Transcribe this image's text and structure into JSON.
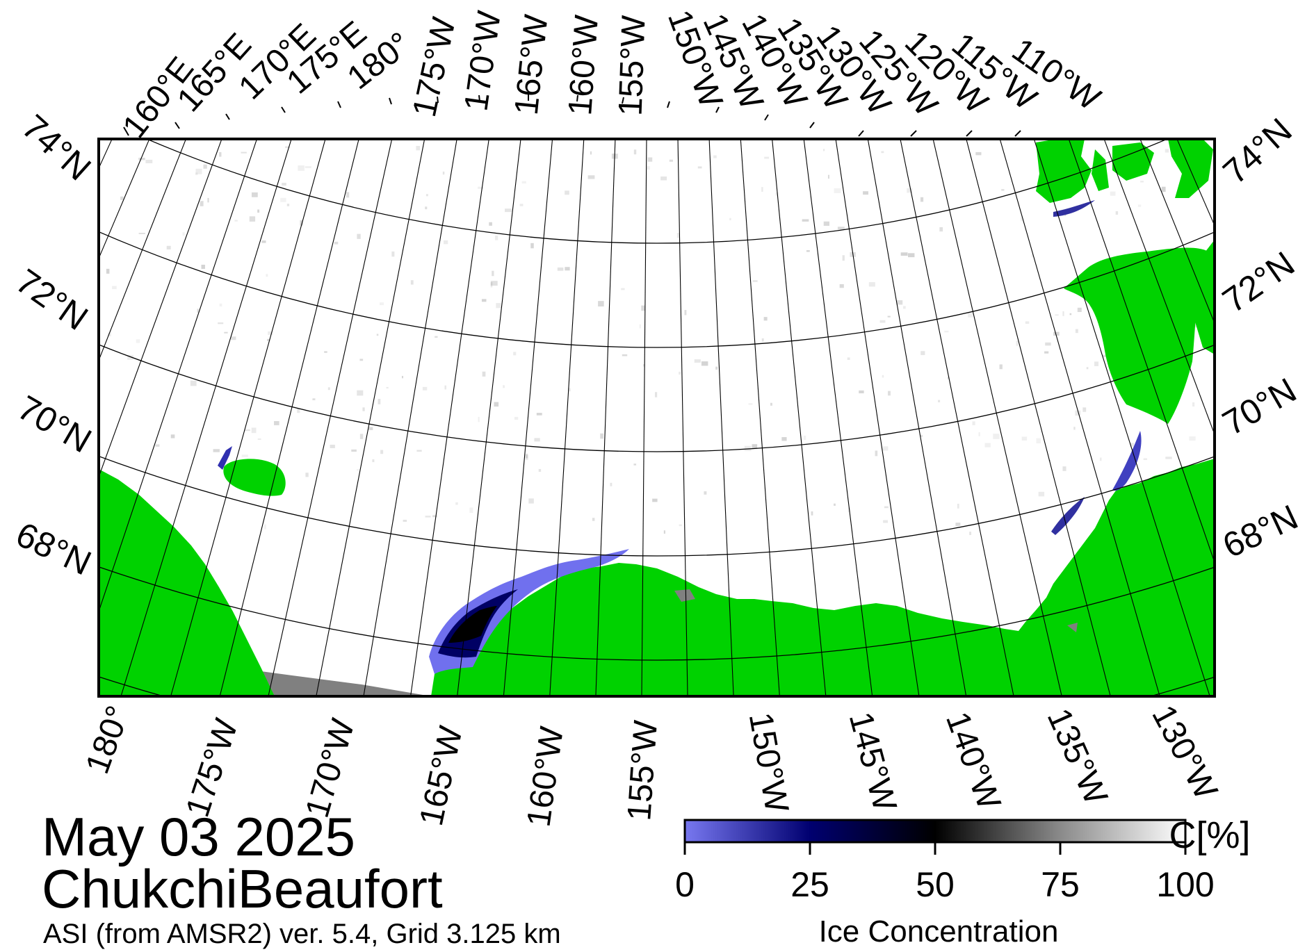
{
  "date": "May 03 2025",
  "region": "ChukchiBeaufort",
  "source": "ASI (from AMSR2) ver. 5.4,  Grid 3.125 km",
  "colorbar": {
    "title": "Ice Concentration",
    "unit": "C[%]",
    "ticks": [
      "0",
      "25",
      "50",
      "75",
      "100"
    ],
    "range": [
      0,
      100
    ]
  },
  "labels": {
    "top_lon": [
      "160°E",
      "165°E",
      "170°E",
      "175°E",
      "180°",
      "175°W",
      "170°W",
      "165°W",
      "160°W",
      "155°W",
      "150°W",
      "145°W",
      "140°W",
      "135°W",
      "130°W",
      "125°W",
      "120°W",
      "115°W",
      "110°W"
    ],
    "bottom_lon": [
      "180°",
      "175°W",
      "170°W",
      "165°W",
      "160°W",
      "155°W",
      "150°W",
      "145°W",
      "140°W",
      "135°W",
      "130°W"
    ],
    "left_lat": [
      "74°N",
      "72°N",
      "70°N",
      "68°N"
    ],
    "right_lat": [
      "74°N",
      "72°N",
      "70°N",
      "68°N"
    ]
  },
  "colors": {
    "land": "#00d200",
    "nodata": "#808080",
    "ice_full": "#ffffff",
    "ice_low": "#7070ee",
    "ice_mid": "#000064",
    "frame": "#000000"
  }
}
